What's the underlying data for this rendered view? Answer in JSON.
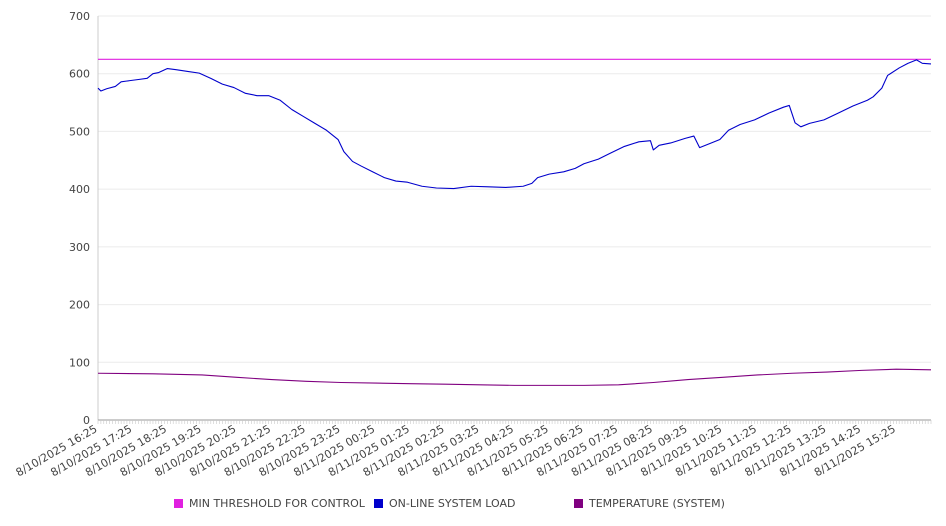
{
  "chart_data": {
    "type": "line",
    "title": "",
    "xlabel": "",
    "ylabel": "",
    "ylim": [
      0,
      700
    ],
    "yticks": [
      0,
      100,
      200,
      300,
      400,
      500,
      600,
      700
    ],
    "grid": true,
    "legend_position": "bottom",
    "x_start": "8/10/2025 16:25",
    "x_end": "8/11/2025 16:25",
    "x_tick_labels": [
      "8/10/2025 16:25",
      "8/10/2025 17:25",
      "8/10/2025 18:25",
      "8/10/2025 19:25",
      "8/10/2025 20:25",
      "8/10/2025 21:25",
      "8/10/2025 22:25",
      "8/10/2025 23:25",
      "8/11/2025 00:25",
      "8/11/2025 01:25",
      "8/11/2025 02:25",
      "8/11/2025 03:25",
      "8/11/2025 04:25",
      "8/11/2025 05:25",
      "8/11/2025 06:25",
      "8/11/2025 07:25",
      "8/11/2025 08:25",
      "8/11/2025 09:25",
      "8/11/2025 10:25",
      "8/11/2025 11:25",
      "8/11/2025 12:25",
      "8/11/2025 13:25",
      "8/11/2025 14:25",
      "8/11/2025 15:25"
    ],
    "series": [
      {
        "name": "MIN THRESHOLD FOR CONTROL",
        "color": "#e020e0",
        "points": [
          [
            "8/10/2025 16:25",
            625
          ],
          [
            "8/11/2025 16:25",
            625
          ]
        ]
      },
      {
        "name": "ON-LINE SYSTEM LOAD",
        "color": "#0000cc",
        "points": [
          [
            "8/10/2025 16:25",
            575
          ],
          [
            "8/10/2025 16:30",
            570
          ],
          [
            "8/10/2025 16:40",
            574
          ],
          [
            "8/10/2025 16:55",
            578
          ],
          [
            "8/10/2025 17:05",
            586
          ],
          [
            "8/10/2025 17:20",
            588
          ],
          [
            "8/10/2025 17:35",
            590
          ],
          [
            "8/10/2025 17:50",
            592
          ],
          [
            "8/10/2025 18:00",
            600
          ],
          [
            "8/10/2025 18:10",
            602
          ],
          [
            "8/10/2025 18:25",
            609
          ],
          [
            "8/10/2025 18:40",
            607
          ],
          [
            "8/10/2025 19:00",
            604
          ],
          [
            "8/10/2025 19:20",
            601
          ],
          [
            "8/10/2025 19:40",
            592
          ],
          [
            "8/10/2025 20:00",
            582
          ],
          [
            "8/10/2025 20:20",
            576
          ],
          [
            "8/10/2025 20:40",
            566
          ],
          [
            "8/10/2025 21:00",
            562
          ],
          [
            "8/10/2025 21:20",
            562
          ],
          [
            "8/10/2025 21:40",
            554
          ],
          [
            "8/10/2025 22:00",
            538
          ],
          [
            "8/10/2025 22:20",
            526
          ],
          [
            "8/10/2025 22:40",
            514
          ],
          [
            "8/10/2025 23:00",
            502
          ],
          [
            "8/10/2025 23:20",
            486
          ],
          [
            "8/10/2025 23:30",
            465
          ],
          [
            "8/10/2025 23:45",
            448
          ],
          [
            "8/11/2025 00:00",
            440
          ],
          [
            "8/11/2025 00:20",
            430
          ],
          [
            "8/11/2025 00:40",
            420
          ],
          [
            "8/11/2025 01:00",
            414
          ],
          [
            "8/11/2025 01:20",
            412
          ],
          [
            "8/11/2025 01:45",
            405
          ],
          [
            "8/11/2025 02:10",
            402
          ],
          [
            "8/11/2025 02:40",
            401
          ],
          [
            "8/11/2025 03:10",
            405
          ],
          [
            "8/11/2025 03:40",
            404
          ],
          [
            "8/11/2025 04:10",
            403
          ],
          [
            "8/11/2025 04:40",
            405
          ],
          [
            "8/11/2025 04:55",
            410
          ],
          [
            "8/11/2025 05:05",
            420
          ],
          [
            "8/11/2025 05:25",
            426
          ],
          [
            "8/11/2025 05:50",
            430
          ],
          [
            "8/11/2025 06:10",
            436
          ],
          [
            "8/11/2025 06:25",
            444
          ],
          [
            "8/11/2025 06:50",
            452
          ],
          [
            "8/11/2025 07:10",
            462
          ],
          [
            "8/11/2025 07:35",
            474
          ],
          [
            "8/11/2025 08:00",
            482
          ],
          [
            "8/11/2025 08:20",
            484
          ],
          [
            "8/11/2025 08:25",
            468
          ],
          [
            "8/11/2025 08:35",
            476
          ],
          [
            "8/11/2025 08:55",
            480
          ],
          [
            "8/11/2025 09:20",
            488
          ],
          [
            "8/11/2025 09:35",
            492
          ],
          [
            "8/11/2025 09:45",
            472
          ],
          [
            "8/11/2025 10:05",
            480
          ],
          [
            "8/11/2025 10:20",
            486
          ],
          [
            "8/11/2025 10:35",
            502
          ],
          [
            "8/11/2025 10:55",
            512
          ],
          [
            "8/11/2025 11:20",
            520
          ],
          [
            "8/11/2025 11:45",
            532
          ],
          [
            "8/11/2025 12:10",
            542
          ],
          [
            "8/11/2025 12:20",
            545
          ],
          [
            "8/11/2025 12:30",
            515
          ],
          [
            "8/11/2025 12:40",
            508
          ],
          [
            "8/11/2025 12:55",
            514
          ],
          [
            "8/11/2025 13:20",
            520
          ],
          [
            "8/11/2025 13:45",
            532
          ],
          [
            "8/11/2025 14:10",
            544
          ],
          [
            "8/11/2025 14:35",
            554
          ],
          [
            "8/11/2025 14:45",
            560
          ],
          [
            "8/11/2025 15:00",
            575
          ],
          [
            "8/11/2025 15:10",
            597
          ],
          [
            "8/11/2025 15:30",
            610
          ],
          [
            "8/11/2025 15:45",
            618
          ],
          [
            "8/11/2025 16:00",
            624
          ],
          [
            "8/11/2025 16:10",
            618
          ],
          [
            "8/11/2025 16:25",
            617
          ]
        ]
      },
      {
        "name": "TEMPERATURE (SYSTEM)",
        "color": "#800080",
        "points": [
          [
            "8/10/2025 16:25",
            81
          ],
          [
            "8/10/2025 18:00",
            80
          ],
          [
            "8/10/2025 19:25",
            78
          ],
          [
            "8/10/2025 20:25",
            74
          ],
          [
            "8/10/2025 21:25",
            70
          ],
          [
            "8/10/2025 22:25",
            67
          ],
          [
            "8/10/2025 23:25",
            65
          ],
          [
            "8/11/2025 00:25",
            64
          ],
          [
            "8/11/2025 01:25",
            63
          ],
          [
            "8/11/2025 02:25",
            62
          ],
          [
            "8/11/2025 03:25",
            61
          ],
          [
            "8/11/2025 04:25",
            60
          ],
          [
            "8/11/2025 05:25",
            60
          ],
          [
            "8/11/2025 06:25",
            60
          ],
          [
            "8/11/2025 07:25",
            61
          ],
          [
            "8/11/2025 08:25",
            65
          ],
          [
            "8/11/2025 09:25",
            70
          ],
          [
            "8/11/2025 10:25",
            74
          ],
          [
            "8/11/2025 11:25",
            78
          ],
          [
            "8/11/2025 12:25",
            81
          ],
          [
            "8/11/2025 13:25",
            83
          ],
          [
            "8/11/2025 14:25",
            86
          ],
          [
            "8/11/2025 15:25",
            88
          ],
          [
            "8/11/2025 16:25",
            87
          ]
        ]
      }
    ]
  }
}
